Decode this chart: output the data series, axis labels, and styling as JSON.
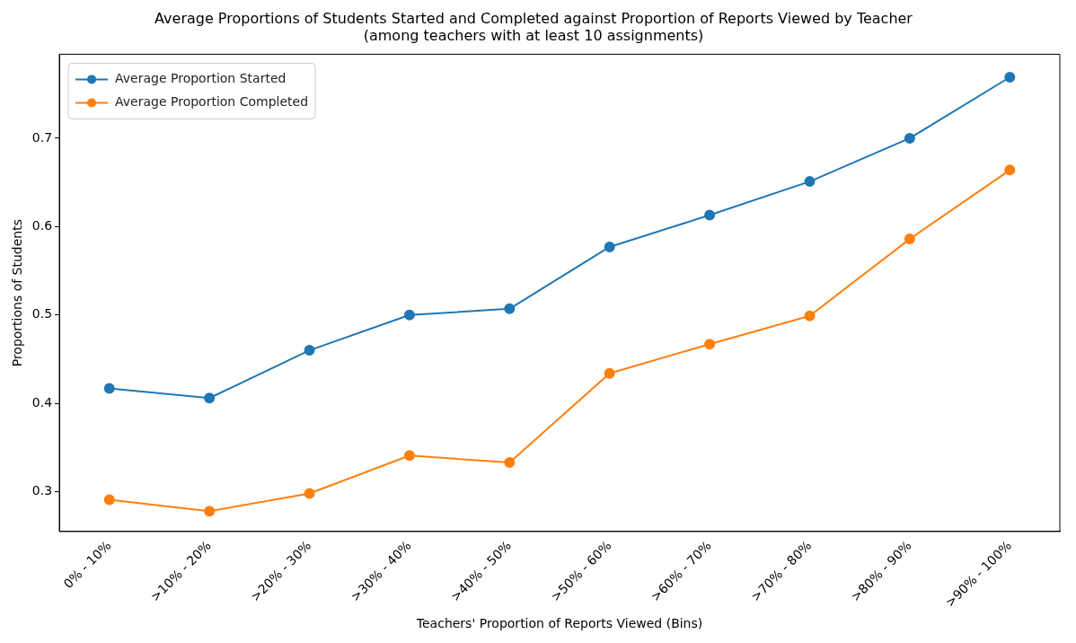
{
  "chart_data": {
    "type": "line",
    "title": "Average Proportions of Students Started and Completed against Proportion of Reports Viewed by Teacher",
    "subtitle": "(among teachers with at least 10 assignments)",
    "xlabel": "Teachers' Proportion of Reports Viewed (Bins)",
    "ylabel": "Proportions of Students",
    "categories": [
      "0% - 10%",
      ">10% - 20%",
      ">20% - 30%",
      ">30% - 40%",
      ">40% - 50%",
      ">50% - 60%",
      ">60% - 70%",
      ">70% - 80%",
      ">80% - 90%",
      ">90% - 100%"
    ],
    "series": [
      {
        "name": "Average Proportion Started",
        "color": "#1f77b4",
        "values": [
          0.417,
          0.406,
          0.46,
          0.5,
          0.507,
          0.577,
          0.613,
          0.651,
          0.7,
          0.769
        ]
      },
      {
        "name": "Average Proportion Completed",
        "color": "#ff7f0e",
        "values": [
          0.291,
          0.278,
          0.298,
          0.341,
          0.333,
          0.434,
          0.467,
          0.499,
          0.586,
          0.664
        ]
      }
    ],
    "ylim": [
      0.255,
      0.795
    ],
    "yticks": [
      0.3,
      0.4,
      0.5,
      0.6,
      0.7
    ],
    "grid": false,
    "legend": "top left",
    "marker": "circle",
    "line_style": "solid"
  }
}
